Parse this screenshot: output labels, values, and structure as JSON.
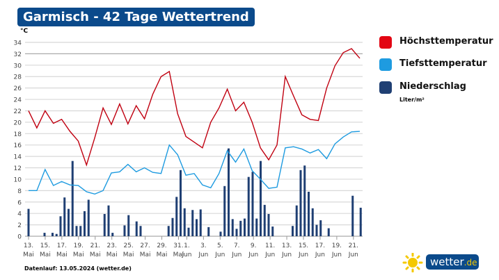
{
  "title": "Garmisch - 42 Tage Wettertrend",
  "footer": "Datenlauf: 13.05.2024 (wetter.de)",
  "logo": {
    "text": "wetter",
    "suffix": ".de",
    "icon": "sun-icon"
  },
  "legend": {
    "items": [
      {
        "label": "Höchsttemperatur",
        "color": "#e30613"
      },
      {
        "label": "Tiefsttemperatur",
        "color": "#1e9be0"
      },
      {
        "label": "Niederschlag",
        "color": "#1f3f73"
      }
    ],
    "precip_unit": "Liter/m²"
  },
  "chart_data": {
    "type": "line+bar",
    "ylabel": "°C",
    "ylim": [
      0,
      34
    ],
    "yticks": [
      0,
      2,
      4,
      6,
      8,
      10,
      12,
      14,
      16,
      18,
      20,
      22,
      24,
      26,
      28,
      30,
      32,
      34
    ],
    "grid": true,
    "legend_position": "right",
    "xticks": [
      {
        "day": "13.",
        "month": "Mai"
      },
      {
        "day": "15.",
        "month": "Mai"
      },
      {
        "day": "17.",
        "month": "Mai"
      },
      {
        "day": "19.",
        "month": "Mai"
      },
      {
        "day": "21.",
        "month": "Mai"
      },
      {
        "day": "23.",
        "month": "Mai"
      },
      {
        "day": "25.",
        "month": "Mai"
      },
      {
        "day": "27.",
        "month": "Mai"
      },
      {
        "day": "29.",
        "month": "Mai"
      },
      {
        "day": "31.",
        "month": "Mai"
      },
      {
        "day": "1.",
        "month": "Jun"
      },
      {
        "day": "3.",
        "month": "Jun"
      },
      {
        "day": "5.",
        "month": "Jun"
      },
      {
        "day": "7.",
        "month": "Jun"
      },
      {
        "day": "9.",
        "month": "Jun"
      },
      {
        "day": "11.",
        "month": "Jun"
      },
      {
        "day": "13.",
        "month": "Jun"
      },
      {
        "day": "15.",
        "month": "Jun"
      },
      {
        "day": "17.",
        "month": "Jun"
      },
      {
        "day": "19.",
        "month": "Jun"
      },
      {
        "day": "21.",
        "month": "Jun"
      }
    ],
    "xtick_day_offsets": [
      0,
      2,
      4,
      6,
      8,
      10,
      12,
      14,
      16,
      18,
      19,
      21,
      23,
      25,
      27,
      29,
      31,
      33,
      35,
      37,
      39
    ],
    "series": [
      {
        "name": "Höchsttemperatur",
        "type": "line",
        "color": "#c00010",
        "values": [
          22,
          19,
          22,
          19.8,
          20.5,
          18.4,
          16.7,
          12.5,
          17.3,
          22.5,
          19.6,
          23.2,
          19.7,
          22.9,
          20.6,
          24.9,
          28,
          28.9,
          21.5,
          17.5,
          16.5,
          15.5,
          20,
          22.5,
          25.8,
          22,
          23.5,
          20,
          15.5,
          13.4,
          16,
          28,
          24.6,
          21.3,
          20.5,
          20.3,
          26,
          29.9,
          32.2,
          32.9,
          31.2
        ]
      },
      {
        "name": "Tiefsttemperatur",
        "type": "line",
        "color": "#1e9be0",
        "values": [
          8,
          8,
          11.7,
          8.9,
          9.6,
          9,
          8.9,
          7.8,
          7.4,
          8,
          11.1,
          11.3,
          12.6,
          11.3,
          12,
          11.2,
          11,
          16,
          14.3,
          10.7,
          11,
          9,
          8.5,
          11,
          15,
          13,
          15.3,
          11.5,
          10,
          8.4,
          8.6,
          15.5,
          15.7,
          15.3,
          14.6,
          15.2,
          13.6,
          16.2,
          17.4,
          18.3,
          18.4
        ]
      },
      {
        "name": "Niederschlag",
        "type": "bar",
        "color": "#1f3f73",
        "values": [
          4.8,
          0,
          0,
          0,
          0.6,
          0,
          0.6,
          0.4,
          3.5,
          6.8,
          4.8,
          13.2,
          1.8,
          1.8,
          4.4,
          6.4,
          0,
          0,
          0,
          3.9,
          5.4,
          0.6,
          0,
          0,
          1.9,
          3.7,
          0,
          2.6,
          1.8,
          0,
          0,
          0,
          0,
          0,
          0,
          1.8,
          3.2,
          6.9,
          11.6,
          4.9,
          1.5,
          4.6,
          3,
          4.7,
          0,
          1.6,
          0,
          0,
          0.8,
          8.8,
          15.4,
          3,
          1.3,
          2.7,
          3.1,
          10.4,
          11.3,
          3.1,
          13.2,
          5.5,
          3.9,
          1.7,
          0,
          0,
          0,
          0,
          1.8,
          5.4,
          11.6,
          12.4,
          7.8,
          4.9,
          2,
          2.8,
          0,
          1.4,
          0,
          0,
          0,
          0,
          0,
          7.1,
          0,
          5
        ]
      }
    ]
  }
}
